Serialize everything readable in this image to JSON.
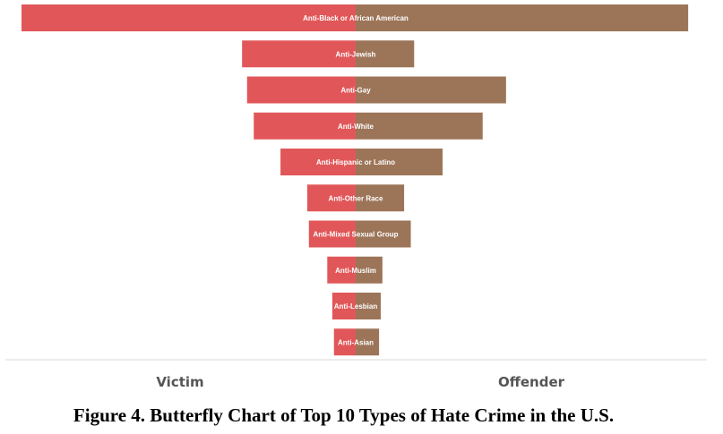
{
  "chart_data": {
    "type": "bar",
    "orientation": "horizontal-butterfly",
    "categories": [
      "Anti-Black or African American",
      "Anti-Jewish",
      "Anti-Gay",
      "Anti-White",
      "Anti-Hispanic or Latino",
      "Anti-Other Race",
      "Anti-Mixed Sexual Group",
      "Anti-Muslim",
      "Anti-Lesbian",
      "Anti-Asian"
    ],
    "series": [
      {
        "name": "Victim",
        "side": "left",
        "color": "#e15759",
        "values": [
          2000,
          680,
          650,
          610,
          450,
          290,
          280,
          170,
          140,
          130
        ]
      },
      {
        "name": "Offender",
        "side": "right",
        "color": "#9c7559",
        "values": [
          1990,
          350,
          900,
          760,
          520,
          290,
          330,
          160,
          150,
          140
        ]
      }
    ],
    "xlim": [
      0,
      2000
    ],
    "grid": false,
    "caption": "Figure 4. Butterfly Chart of Top 10 Types of Hate Crime in the U.S."
  }
}
